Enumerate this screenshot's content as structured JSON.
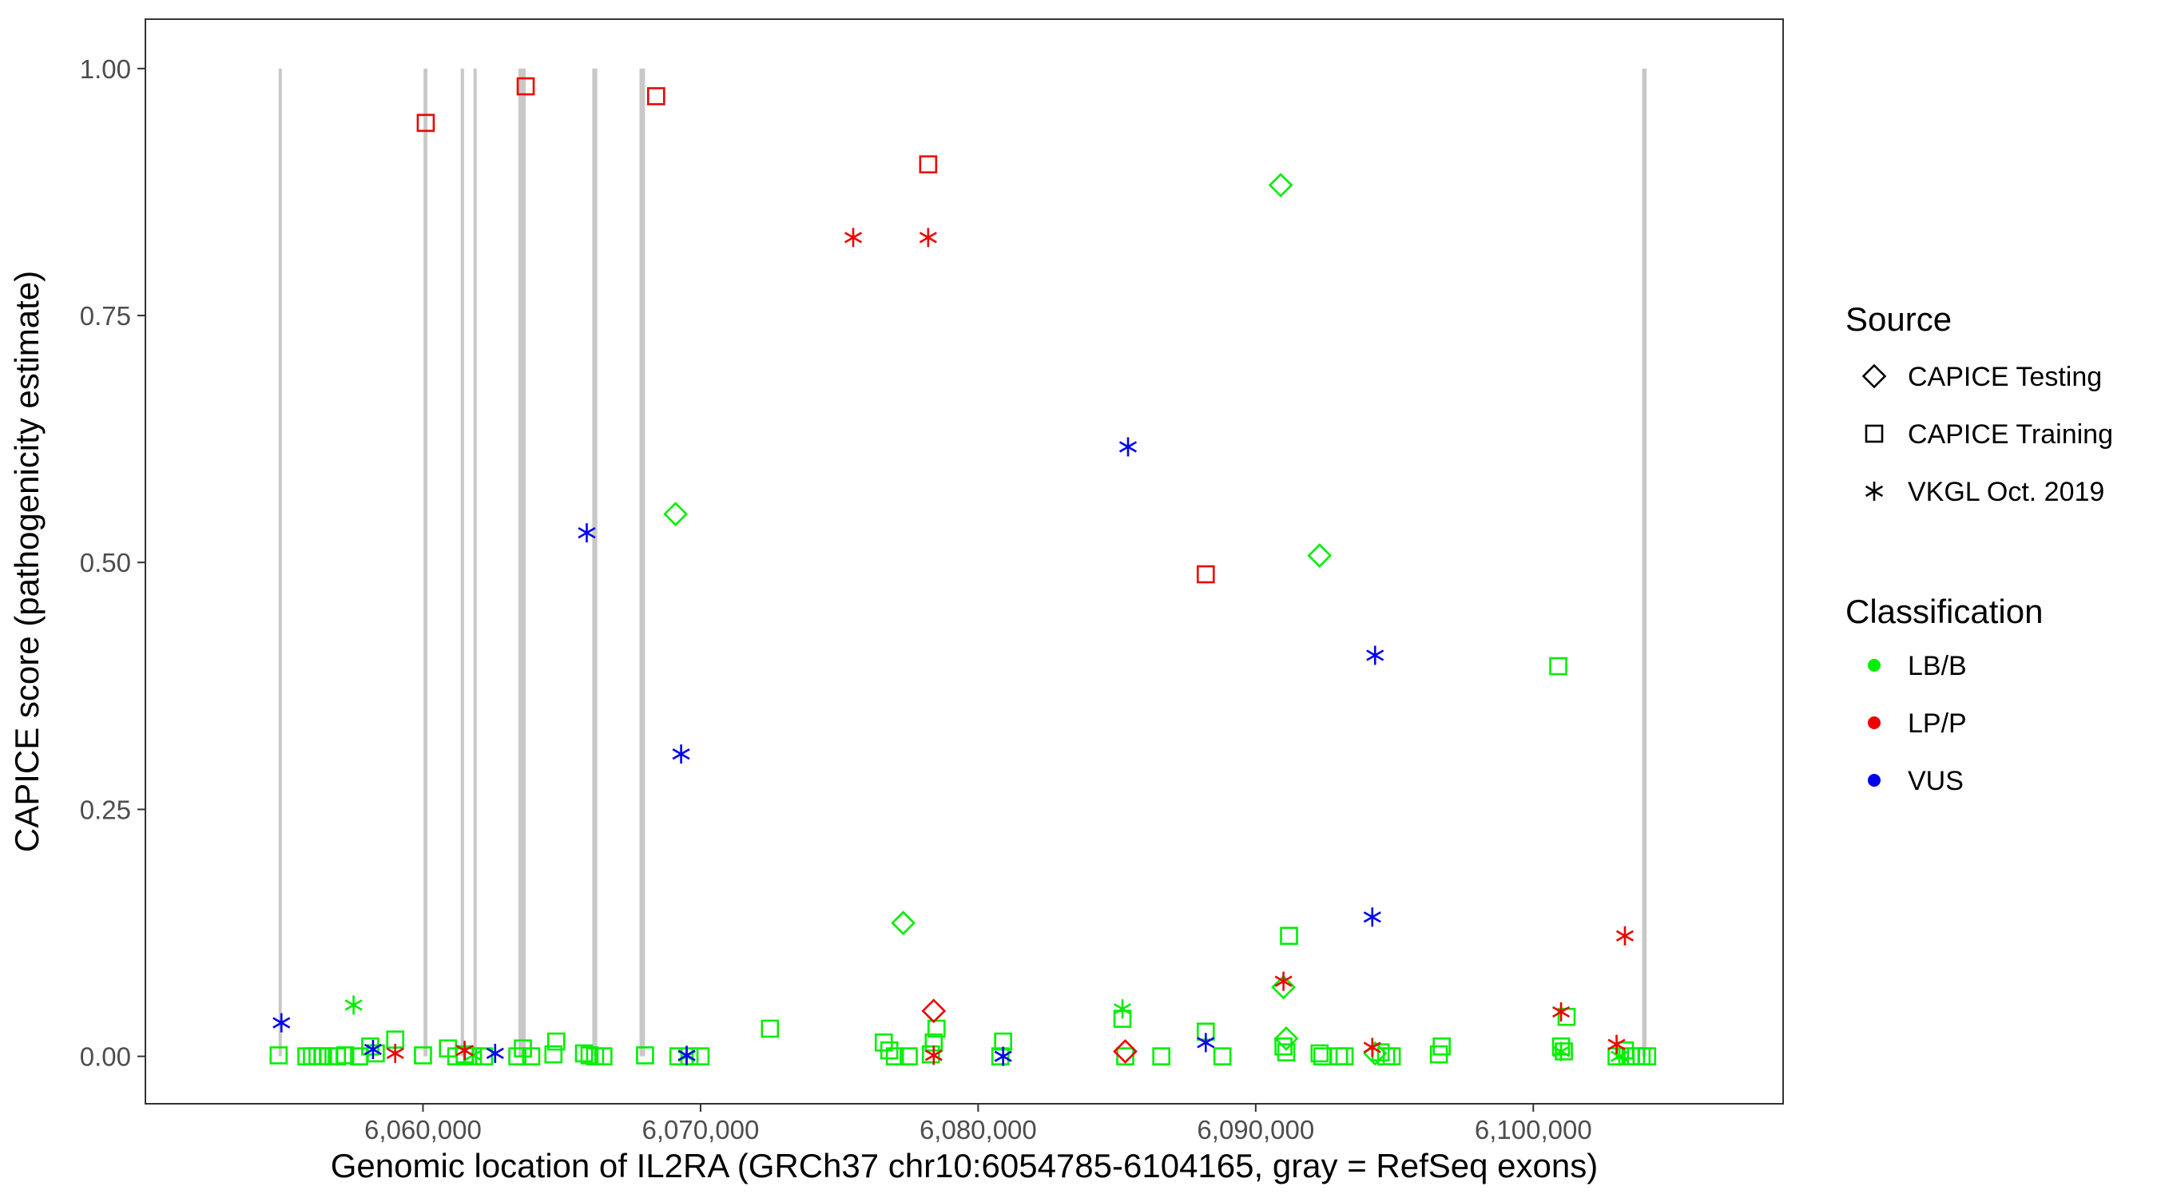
{
  "chart_data": {
    "type": "scatter",
    "xlabel": "Genomic location of IL2RA (GRCh37 chr10:6054785-6104165, gray = RefSeq exons)",
    "ylabel": "CAPICE score (pathogenicity estimate)",
    "xlim": [
      6050000,
      6109000
    ],
    "ylim": [
      -0.048,
      1.05
    ],
    "x_ticks": [
      6060000,
      6070000,
      6080000,
      6090000,
      6100000
    ],
    "x_tick_labels": [
      "6,060,000",
      "6,070,000",
      "6,080,000",
      "6,090,000",
      "6,100,000"
    ],
    "y_ticks": [
      0,
      0.25,
      0.5,
      0.75,
      1
    ],
    "y_tick_labels": [
      "0.00",
      "0.25",
      "0.50",
      "0.75",
      "1.00"
    ],
    "grid": false,
    "exon_color": "#c8c8c8",
    "exons": [
      [
        6054800,
        6054850
      ],
      [
        6060020,
        6060160
      ],
      [
        6061360,
        6061480
      ],
      [
        6061820,
        6061880
      ],
      [
        6063440,
        6063700
      ],
      [
        6066100,
        6066280
      ],
      [
        6067800,
        6068000
      ],
      [
        6103920,
        6104080
      ]
    ],
    "legend": {
      "placement": "right",
      "source_title": "Source",
      "source_entries": [
        {
          "label": "CAPICE Testing",
          "shape": "diamond"
        },
        {
          "label": "CAPICE Training",
          "shape": "square"
        },
        {
          "label": "VKGL Oct. 2019",
          "shape": "asterisk"
        }
      ],
      "class_title": "Classification",
      "class_entries": [
        {
          "label": "LB/B",
          "color": "#00ee00"
        },
        {
          "label": "LP/P",
          "color": "#ee0000"
        },
        {
          "label": "VUS",
          "color": "#0000ee"
        }
      ]
    },
    "series": [
      {
        "name": "CAPICE Training",
        "shape": "square",
        "color": "#00ee00",
        "classification": "LB/B",
        "x": [
          6054800,
          6055800,
          6056000,
          6056200,
          6056400,
          6056600,
          6056900,
          6057200,
          6057700,
          6058100,
          6058300,
          6059000,
          6060000,
          6060900,
          6061200,
          6061500,
          6061800,
          6062200,
          6063400,
          6063600,
          6063900,
          6064700,
          6064800,
          6065800,
          6066000,
          6066200,
          6066500,
          6068000,
          6069200,
          6069600,
          6070000,
          6072500,
          6076600,
          6076800,
          6077000,
          6077500,
          6078300,
          6078400,
          6078500,
          6080800,
          6080900,
          6085200,
          6085300,
          6086600,
          6088200,
          6088800,
          6091000,
          6091100,
          6091200,
          6092300,
          6092400,
          6093000,
          6093200,
          6094500,
          6094700,
          6094900,
          6096600,
          6096700,
          6100900,
          6101000,
          6101100,
          6101200,
          6103000,
          6103300,
          6103500,
          6103700,
          6103900,
          6104100
        ],
        "y": [
          0.001,
          0.0,
          0.0,
          0.0,
          0.0,
          0.0,
          0.0,
          0.001,
          0.0,
          0.01,
          0.003,
          0.017,
          0.001,
          0.008,
          0.0,
          0.002,
          0.0,
          0.0,
          0.0,
          0.008,
          0.0,
          0.002,
          0.015,
          0.003,
          0.001,
          0.0,
          0.0,
          0.001,
          0.0,
          0.0,
          0.0,
          0.028,
          0.014,
          0.006,
          0.0,
          0.0,
          0.002,
          0.014,
          0.028,
          0.0,
          0.015,
          0.038,
          0.0,
          0.0,
          0.025,
          0.0,
          0.01,
          0.004,
          0.122,
          0.003,
          0.0,
          0.0,
          0.0,
          0.004,
          0.0,
          0.0,
          0.002,
          0.01,
          0.395,
          0.01,
          0.005,
          0.04,
          0.0,
          0.006,
          0.0,
          0.0,
          0.0,
          0.0
        ]
      },
      {
        "name": "CAPICE Training",
        "shape": "square",
        "color": "#ee0000",
        "classification": "LP/P",
        "x": [
          6060100,
          6063700,
          6068400,
          6078200,
          6088200
        ],
        "y": [
          0.945,
          0.982,
          0.972,
          0.903,
          0.488
        ]
      },
      {
        "name": "CAPICE Testing",
        "shape": "diamond",
        "color": "#00ee00",
        "classification": "LB/B",
        "x": [
          6069100,
          6077300,
          6090900,
          6091000,
          6091100,
          6092300,
          6094300
        ],
        "y": [
          0.549,
          0.135,
          0.882,
          0.07,
          0.018,
          0.507,
          0.003
        ]
      },
      {
        "name": "CAPICE Testing",
        "shape": "diamond",
        "color": "#ee0000",
        "classification": "LP/P",
        "x": [
          6078400,
          6085300
        ],
        "y": [
          0.046,
          0.005
        ]
      },
      {
        "name": "VKGL Oct. 2019",
        "shape": "asterisk",
        "color": "#00ee00",
        "classification": "LB/B",
        "x": [
          6057500,
          6061800,
          6069500,
          6085200,
          6101000,
          6103100
        ],
        "y": [
          0.052,
          0.001,
          0.0,
          0.048,
          0.005,
          0.0
        ]
      },
      {
        "name": "VKGL Oct. 2019",
        "shape": "asterisk",
        "color": "#ee0000",
        "classification": "LP/P",
        "x": [
          6059000,
          6061500,
          6075500,
          6078200,
          6078400,
          6091000,
          6094200,
          6101000,
          6103000,
          6103300
        ],
        "y": [
          0.003,
          0.006,
          0.829,
          0.829,
          0.001,
          0.076,
          0.009,
          0.045,
          0.012,
          0.122
        ]
      },
      {
        "name": "VKGL Oct. 2019",
        "shape": "asterisk",
        "color": "#0000ee",
        "classification": "VUS",
        "x": [
          6054900,
          6058200,
          6062600,
          6065900,
          6069300,
          6069500,
          6080900,
          6085400,
          6088200,
          6094200,
          6094300
        ],
        "y": [
          0.034,
          0.007,
          0.003,
          0.53,
          0.306,
          0.001,
          0.0,
          0.617,
          0.014,
          0.141,
          0.406
        ]
      }
    ]
  }
}
